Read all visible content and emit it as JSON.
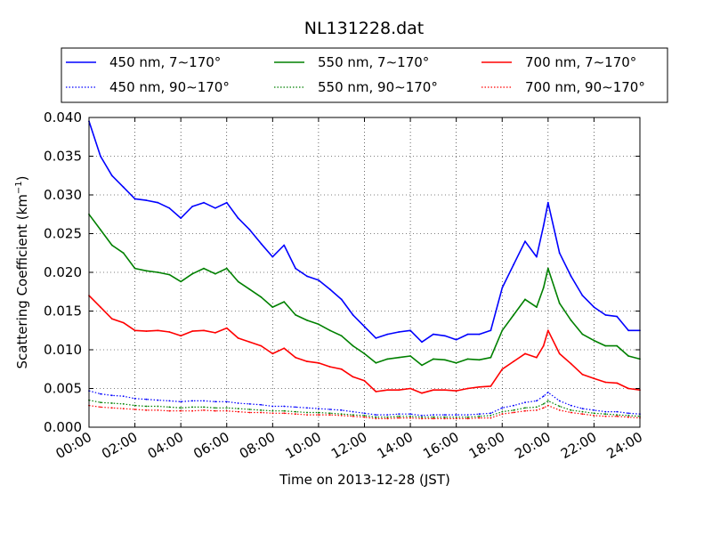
{
  "chart_data": {
    "type": "line",
    "title": "NL131228.dat",
    "xlabel": "Time on 2013-12-28 (JST)",
    "ylabel_main": "Scattering Coefficient (km",
    "ylabel_sup": "−1",
    "ylabel_end": ")",
    "xlim": [
      0,
      24
    ],
    "ylim": [
      0,
      0.04
    ],
    "grid": true,
    "legend_position": "top, above plot",
    "x_ticks": [
      {
        "value": 0,
        "label": "00:00"
      },
      {
        "value": 2,
        "label": "02:00"
      },
      {
        "value": 4,
        "label": "04:00"
      },
      {
        "value": 6,
        "label": "06:00"
      },
      {
        "value": 8,
        "label": "08:00"
      },
      {
        "value": 10,
        "label": "10:00"
      },
      {
        "value": 12,
        "label": "12:00"
      },
      {
        "value": 14,
        "label": "14:00"
      },
      {
        "value": 16,
        "label": "16:00"
      },
      {
        "value": 18,
        "label": "18:00"
      },
      {
        "value": 20,
        "label": "20:00"
      },
      {
        "value": 22,
        "label": "22:00"
      },
      {
        "value": 24,
        "label": "24:00"
      }
    ],
    "y_ticks": [
      {
        "value": 0,
        "label": "0.000"
      },
      {
        "value": 0.005,
        "label": "0.005"
      },
      {
        "value": 0.01,
        "label": "0.010"
      },
      {
        "value": 0.015,
        "label": "0.015"
      },
      {
        "value": 0.02,
        "label": "0.020"
      },
      {
        "value": 0.025,
        "label": "0.025"
      },
      {
        "value": 0.03,
        "label": "0.030"
      },
      {
        "value": 0.035,
        "label": "0.035"
      },
      {
        "value": 0.04,
        "label": "0.040"
      }
    ],
    "x": [
      0,
      0.5,
      1,
      1.5,
      2,
      2.5,
      3,
      3.5,
      4,
      4.5,
      5,
      5.5,
      6,
      6.5,
      7,
      7.5,
      8,
      8.5,
      9,
      9.5,
      10,
      10.5,
      11,
      11.5,
      12,
      12.5,
      13,
      13.5,
      14,
      14.5,
      15,
      15.5,
      16,
      16.5,
      17,
      17.5,
      18,
      18.5,
      19,
      19.5,
      19.8,
      20,
      20.5,
      21,
      21.5,
      22,
      22.5,
      23,
      23.5,
      24
    ],
    "series": [
      {
        "name": "450 nm, 7∼170°",
        "color": "#0000ff",
        "style": "solid",
        "values": [
          0.0395,
          0.035,
          0.0325,
          0.031,
          0.0295,
          0.0293,
          0.029,
          0.0283,
          0.027,
          0.0285,
          0.029,
          0.0283,
          0.029,
          0.027,
          0.0255,
          0.0237,
          0.022,
          0.0235,
          0.0205,
          0.0195,
          0.019,
          0.0178,
          0.0165,
          0.0145,
          0.013,
          0.0115,
          0.012,
          0.0123,
          0.0125,
          0.011,
          0.012,
          0.0118,
          0.0113,
          0.012,
          0.012,
          0.0125,
          0.018,
          0.021,
          0.024,
          0.022,
          0.026,
          0.029,
          0.0225,
          0.0195,
          0.017,
          0.0155,
          0.0145,
          0.0143,
          0.0125,
          0.0125
        ]
      },
      {
        "name": "450 nm, 90∼170°",
        "color": "#0000ff",
        "style": "dotted",
        "values": [
          0.0047,
          0.0043,
          0.0041,
          0.004,
          0.0037,
          0.0036,
          0.0035,
          0.0034,
          0.0033,
          0.0034,
          0.0034,
          0.0033,
          0.0033,
          0.0031,
          0.003,
          0.0029,
          0.0027,
          0.0027,
          0.0026,
          0.0025,
          0.0024,
          0.0023,
          0.0022,
          0.002,
          0.0018,
          0.0016,
          0.0016,
          0.0017,
          0.0017,
          0.0015,
          0.0016,
          0.0016,
          0.0016,
          0.0016,
          0.0017,
          0.0018,
          0.0025,
          0.0028,
          0.0032,
          0.0034,
          0.004,
          0.0045,
          0.0034,
          0.0028,
          0.0024,
          0.0022,
          0.002,
          0.002,
          0.0018,
          0.0017
        ]
      },
      {
        "name": "550 nm, 7∼170°",
        "color": "#008000",
        "style": "solid",
        "values": [
          0.0275,
          0.0255,
          0.0235,
          0.0225,
          0.0205,
          0.0202,
          0.02,
          0.0197,
          0.0188,
          0.0198,
          0.0205,
          0.0198,
          0.0205,
          0.0188,
          0.0178,
          0.0168,
          0.0155,
          0.0162,
          0.0145,
          0.0138,
          0.0133,
          0.0125,
          0.0118,
          0.0105,
          0.0095,
          0.0083,
          0.0088,
          0.009,
          0.0092,
          0.008,
          0.0088,
          0.0087,
          0.0083,
          0.0088,
          0.0087,
          0.009,
          0.0125,
          0.0145,
          0.0165,
          0.0155,
          0.018,
          0.0205,
          0.016,
          0.0138,
          0.012,
          0.0112,
          0.0105,
          0.0105,
          0.0092,
          0.0088
        ]
      },
      {
        "name": "550 nm, 90∼170°",
        "color": "#008000",
        "style": "dotted",
        "values": [
          0.0035,
          0.0032,
          0.0031,
          0.003,
          0.0028,
          0.0027,
          0.0027,
          0.0026,
          0.0025,
          0.0026,
          0.0026,
          0.0025,
          0.0025,
          0.0024,
          0.0023,
          0.0022,
          0.0021,
          0.0021,
          0.002,
          0.0019,
          0.0019,
          0.0018,
          0.0017,
          0.0016,
          0.0015,
          0.0013,
          0.0013,
          0.0014,
          0.0014,
          0.0013,
          0.0013,
          0.0013,
          0.0013,
          0.0013,
          0.0014,
          0.0015,
          0.002,
          0.0022,
          0.0025,
          0.0026,
          0.003,
          0.0034,
          0.0027,
          0.0022,
          0.002,
          0.0018,
          0.0017,
          0.0016,
          0.0015,
          0.0014
        ]
      },
      {
        "name": "700 nm, 7∼170°",
        "color": "#ff0000",
        "style": "solid",
        "values": [
          0.017,
          0.0155,
          0.014,
          0.0135,
          0.0125,
          0.0124,
          0.0125,
          0.0123,
          0.0118,
          0.0124,
          0.0125,
          0.0122,
          0.0128,
          0.0115,
          0.011,
          0.0105,
          0.0095,
          0.0102,
          0.009,
          0.0085,
          0.0083,
          0.0078,
          0.0075,
          0.0065,
          0.006,
          0.0046,
          0.0048,
          0.0048,
          0.005,
          0.0044,
          0.0048,
          0.0048,
          0.0047,
          0.005,
          0.0052,
          0.0053,
          0.0075,
          0.0085,
          0.0095,
          0.009,
          0.0105,
          0.0125,
          0.0095,
          0.0082,
          0.0068,
          0.0063,
          0.0058,
          0.0057,
          0.005,
          0.0048
        ]
      },
      {
        "name": "700 nm, 90∼170°",
        "color": "#ff0000",
        "style": "dotted",
        "values": [
          0.0028,
          0.0026,
          0.0025,
          0.0024,
          0.0023,
          0.0022,
          0.0022,
          0.0021,
          0.0021,
          0.0021,
          0.0022,
          0.0021,
          0.0021,
          0.002,
          0.0019,
          0.0019,
          0.0018,
          0.0018,
          0.0017,
          0.0016,
          0.0016,
          0.0016,
          0.0015,
          0.0014,
          0.0013,
          0.0011,
          0.0011,
          0.0012,
          0.0012,
          0.0011,
          0.0011,
          0.0011,
          0.0011,
          0.0011,
          0.0012,
          0.0012,
          0.0017,
          0.0019,
          0.0021,
          0.0022,
          0.0025,
          0.0028,
          0.0022,
          0.0019,
          0.0017,
          0.0015,
          0.0014,
          0.0014,
          0.0013,
          0.0012
        ]
      }
    ]
  }
}
